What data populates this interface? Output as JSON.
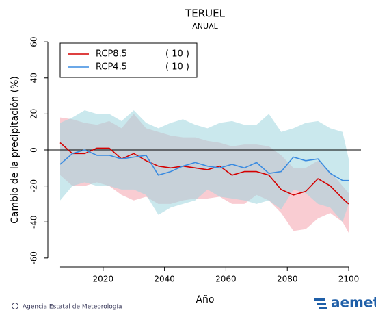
{
  "chart_data": {
    "type": "line",
    "title": "TERUEL",
    "subtitle": "ANUAL",
    "x_label": "Año",
    "y_label": "Cambio de la precipitación (%)",
    "footer": "Agencia Estatal de Meteorología",
    "logo": "aemet",
    "x": [
      2006,
      2010,
      2014,
      2018,
      2022,
      2026,
      2030,
      2034,
      2038,
      2042,
      2046,
      2050,
      2054,
      2058,
      2062,
      2066,
      2070,
      2074,
      2078,
      2082,
      2086,
      2090,
      2094,
      2098,
      2100
    ],
    "series": [
      {
        "name": "RCP8.5",
        "count_label": "( 10 )",
        "color": "#d40000",
        "band_color": "#f4a3ad",
        "values": [
          4,
          -2,
          -2,
          1,
          1,
          -5,
          -2,
          -6,
          -9,
          -10,
          -9,
          -10,
          -11,
          -9,
          -14,
          -12,
          -12,
          -14,
          -22,
          -25,
          -23,
          -16,
          -20,
          -27,
          -30
        ],
        "upper": [
          18,
          17,
          15,
          14,
          16,
          12,
          20,
          12,
          10,
          8,
          7,
          7,
          5,
          4,
          2,
          3,
          3,
          2,
          -3,
          -10,
          -10,
          -6,
          -12,
          -20,
          -24
        ],
        "lower": [
          -14,
          -20,
          -20,
          -18,
          -20,
          -25,
          -28,
          -26,
          -30,
          -30,
          -28,
          -27,
          -27,
          -26,
          -30,
          -30,
          -25,
          -28,
          -35,
          -45,
          -44,
          -38,
          -35,
          -40,
          -46
        ]
      },
      {
        "name": "RCP4.5",
        "count_label": "( 10 )",
        "color": "#3a8be0",
        "band_color": "#9fd6df",
        "values": [
          -8,
          -2,
          0,
          -3,
          -3,
          -5,
          -4,
          -3,
          -14,
          -12,
          -9,
          -7,
          -9,
          -10,
          -8,
          -10,
          -7,
          -13,
          -12,
          -4,
          -6,
          -5,
          -13,
          -17,
          -17
        ],
        "upper": [
          15,
          18,
          22,
          20,
          20,
          16,
          22,
          15,
          12,
          15,
          17,
          14,
          12,
          15,
          16,
          14,
          14,
          20,
          10,
          12,
          15,
          16,
          12,
          10,
          -5
        ],
        "lower": [
          -28,
          -20,
          -18,
          -20,
          -20,
          -22,
          -22,
          -25,
          -36,
          -32,
          -30,
          -28,
          -22,
          -26,
          -27,
          -28,
          -30,
          -28,
          -33,
          -22,
          -24,
          -30,
          -32,
          -40,
          -30
        ]
      }
    ],
    "hline": 0,
    "xlim": [
      2002,
      2104
    ],
    "ylim": [
      -65,
      65
    ],
    "xticks": [
      2020,
      2040,
      2060,
      2080,
      2100
    ],
    "yticks": [
      -60,
      -40,
      -20,
      0,
      20,
      40,
      60
    ]
  }
}
